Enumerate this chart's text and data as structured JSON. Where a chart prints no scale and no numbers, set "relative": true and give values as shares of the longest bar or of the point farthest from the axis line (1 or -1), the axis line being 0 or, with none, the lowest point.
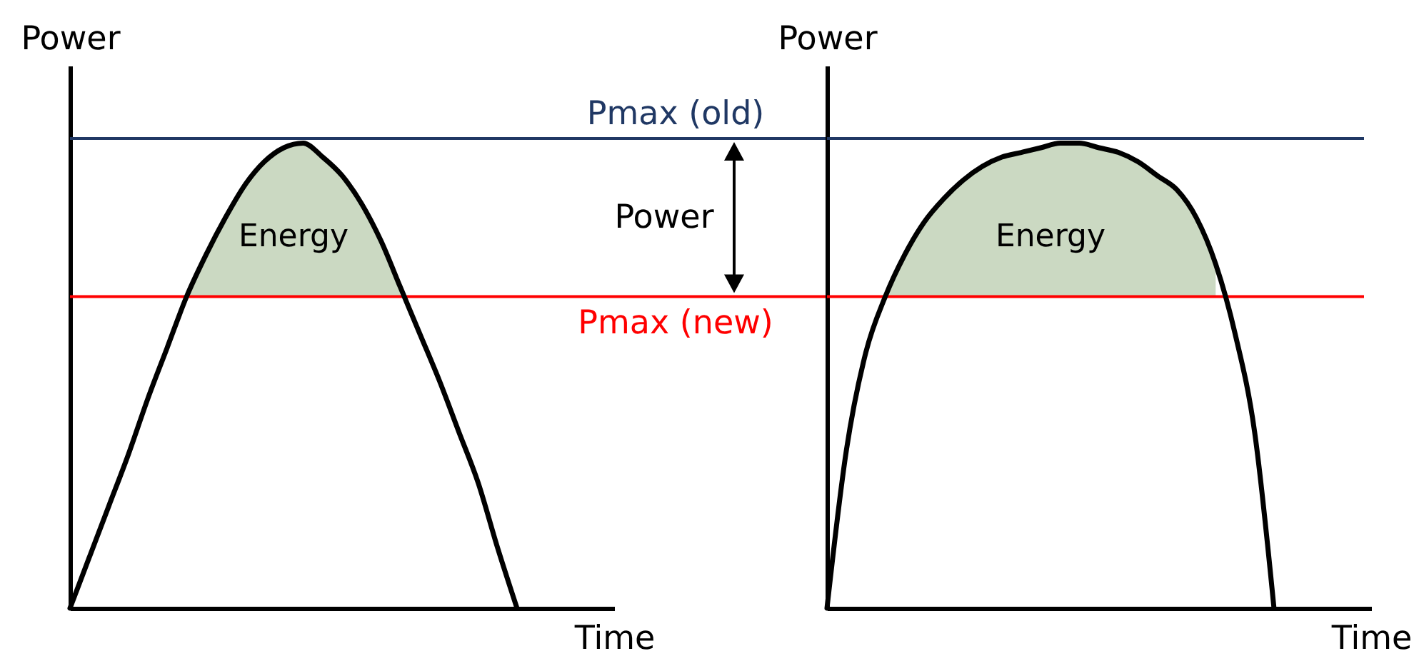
{
  "chart_data": [
    {
      "type": "line",
      "ylabel": "Power",
      "xlabel": "Time",
      "relative": true,
      "categories": [
        null,
        null,
        null,
        null,
        null,
        null,
        null,
        null,
        null,
        null,
        null,
        null,
        null,
        null,
        null,
        null,
        null,
        null,
        null,
        null,
        null,
        null,
        null,
        null,
        null,
        null,
        null,
        null,
        null
      ],
      "series": [
        {
          "color": "#000000",
          "values": [
            0,
            0.11,
            0.22,
            0.33,
            0.45,
            0.56,
            0.67,
            0.76,
            0.84,
            0.91,
            0.96,
            0.99,
            1,
            0.97,
            0.93,
            0.87,
            0.79,
            0.69,
            0.59,
            0.49,
            0.38,
            0.27,
            0.13,
            0,
            null,
            null,
            null,
            null,
            null
          ],
          "lower": [
            null,
            null,
            null,
            null,
            null,
            null,
            0.67,
            0.67,
            0.67,
            0.67,
            0.67,
            0.67,
            0.67,
            0.67,
            0.67,
            0.67,
            0.67,
            0.67,
            null,
            null,
            null,
            null,
            null,
            null,
            null,
            null,
            null,
            null,
            null
          ],
          "upper": [
            null,
            null,
            null,
            null,
            null,
            null,
            0.67,
            0.76,
            0.84,
            0.91,
            0.96,
            0.99,
            1,
            0.97,
            0.93,
            0.87,
            0.79,
            0.69,
            null,
            null,
            null,
            null,
            null,
            null,
            null,
            null,
            null,
            null,
            null
          ]
        }
      ],
      "ref_lines": [
        {
          "axis": "y",
          "value": 1.01,
          "label": "Pmax (old)",
          "color": "#203864"
        },
        {
          "axis": "y",
          "value": 0.67,
          "label": "Pmax (new)",
          "color": "#ff0000"
        }
      ],
      "annotations": [
        "Energy",
        "Power"
      ]
    },
    {
      "type": "line",
      "ylabel": "Power",
      "xlabel": "Time",
      "relative": true,
      "categories": [
        null,
        null,
        null,
        null,
        null,
        null,
        null,
        null,
        null,
        null,
        null,
        null,
        null,
        null,
        null,
        null,
        null,
        null,
        null,
        null,
        null,
        null,
        null,
        null,
        null,
        null,
        null,
        null,
        null
      ],
      "series": [
        {
          "color": "#000000",
          "values": [
            0,
            0.34,
            0.55,
            0.67,
            0.76,
            0.83,
            0.88,
            0.92,
            0.95,
            0.97,
            0.98,
            0.99,
            1,
            1,
            0.99,
            0.98,
            0.96,
            0.93,
            0.9,
            0.84,
            0.74,
            0.59,
            0.38,
            0,
            null,
            null,
            null,
            null,
            null
          ],
          "lower": [
            null,
            null,
            null,
            0.67,
            0.67,
            0.67,
            0.67,
            0.67,
            0.67,
            0.67,
            0.67,
            0.67,
            0.67,
            0.67,
            0.67,
            0.67,
            0.67,
            0.67,
            0.67,
            0.67,
            0.67,
            null,
            null,
            null,
            null,
            null,
            null,
            null,
            null
          ],
          "upper": [
            null,
            null,
            null,
            0.67,
            0.76,
            0.83,
            0.88,
            0.92,
            0.95,
            0.97,
            0.98,
            0.99,
            1,
            1,
            0.99,
            0.98,
            0.96,
            0.93,
            0.9,
            0.84,
            0.74,
            null,
            null,
            null,
            null,
            null,
            null,
            null,
            null
          ]
        }
      ],
      "ref_lines": [
        {
          "axis": "y",
          "value": 1.01,
          "color": "#203864"
        },
        {
          "axis": "y",
          "value": 0.67,
          "color": "#ff0000"
        }
      ],
      "annotations": [
        "Energy"
      ]
    }
  ]
}
